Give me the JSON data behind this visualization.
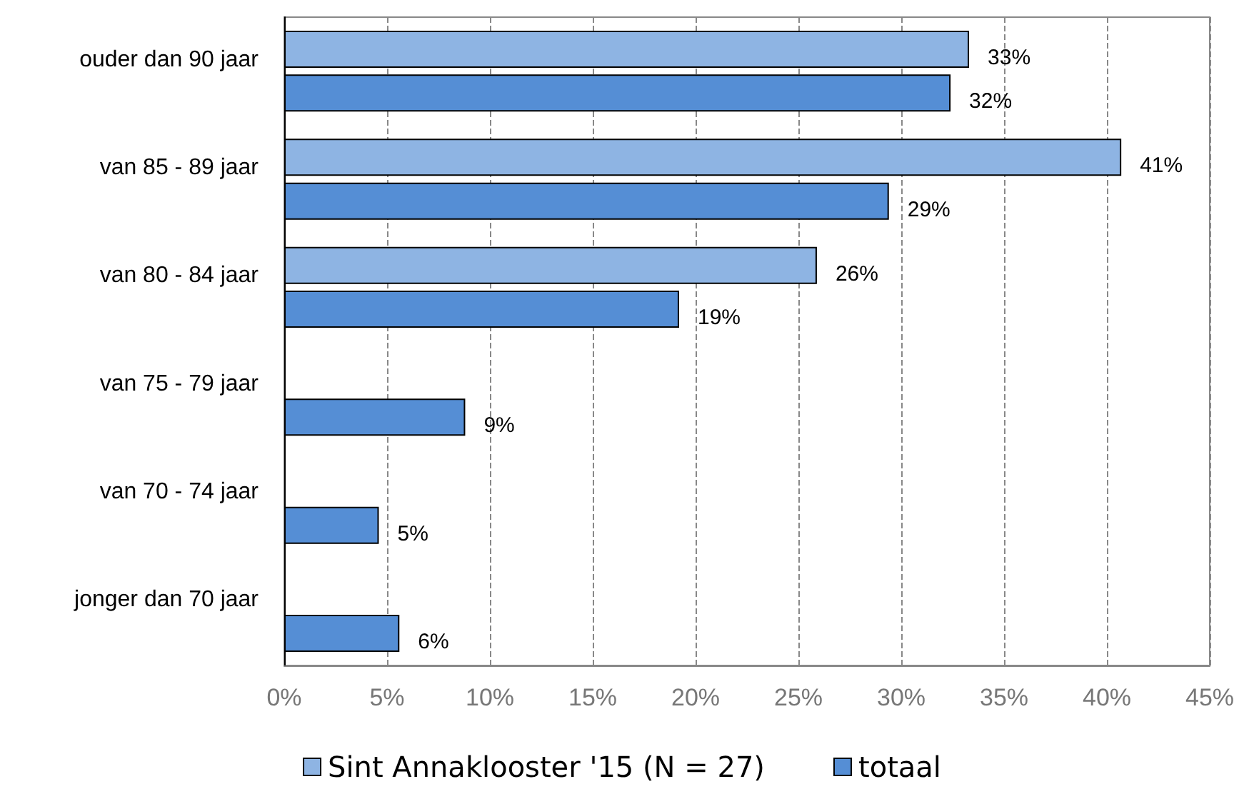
{
  "chart_data": {
    "type": "bar",
    "orientation": "horizontal",
    "categories": [
      "ouder dan 90 jaar",
      "van 85 - 89 jaar",
      "van 80 - 84 jaar",
      "van 75 - 79 jaar",
      "van 70 - 74 jaar",
      "jonger dan 70 jaar"
    ],
    "series": [
      {
        "name": "Sint Annaklooster '15 (N = 27)",
        "color": "#8eb4e3",
        "values": [
          33.3,
          40.7,
          25.9,
          null,
          null,
          null
        ],
        "value_labels": [
          "33%",
          "41%",
          "26%",
          null,
          null,
          null
        ]
      },
      {
        "name": "totaal",
        "color": "#558ed5",
        "values": [
          32.4,
          29.4,
          19.2,
          8.8,
          4.6,
          5.6
        ],
        "value_labels": [
          "32%",
          "29%",
          "19%",
          "9%",
          "5%",
          "6%"
        ]
      }
    ],
    "xlim": [
      0,
      45
    ],
    "xticks": [
      {
        "value": 0,
        "label": "0%"
      },
      {
        "value": 5,
        "label": "5%"
      },
      {
        "value": 10,
        "label": "10%"
      },
      {
        "value": 15,
        "label": "15%"
      },
      {
        "value": 20,
        "label": "20%"
      },
      {
        "value": 25,
        "label": "25%"
      },
      {
        "value": 30,
        "label": "30%"
      },
      {
        "value": 35,
        "label": "35%"
      },
      {
        "value": 40,
        "label": "40%"
      },
      {
        "value": 45,
        "label": "45%"
      }
    ],
    "grid": "x",
    "legend": "bottom"
  }
}
